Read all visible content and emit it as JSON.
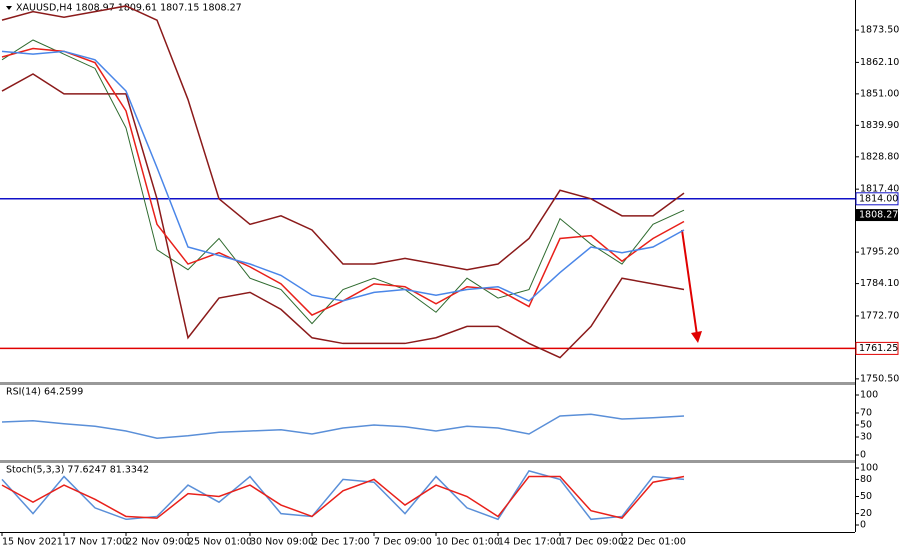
{
  "chart_data": [
    {
      "type": "line",
      "title": "XAUUSD,H4 1808.97 1809.61 1807.15 1808.27",
      "categories": [
        "15 Nov 2021",
        null,
        "17 Nov 17:00",
        null,
        "22 Nov 09:00",
        null,
        "25 Nov 01:00",
        null,
        "30 Nov 09:00",
        null,
        "2 Dec 17:00",
        null,
        "7 Dec 09:00",
        null,
        "10 Dec 01:00",
        null,
        "14 Dec 17:00",
        null,
        "17 Dec 09:00",
        null,
        "22 Dec 01:00",
        null,
        null
      ],
      "series": [
        {
          "color": "#2f6b2f",
          "values": [
            1863,
            1870,
            1865,
            1860,
            1839,
            1796,
            1789,
            1800,
            1786,
            1782,
            1770,
            1782,
            1786,
            1782,
            1774,
            1786,
            1779,
            1782,
            1807,
            1798,
            1791,
            1805,
            1810
          ]
        },
        {
          "color": "#8b1a1a",
          "values": [
            1877,
            1880,
            1878,
            1880,
            1882,
            1877,
            1849,
            1814,
            1805,
            1808,
            1803,
            1791,
            1791,
            1793,
            1791,
            1789,
            1791,
            1800,
            1817,
            1814,
            1808,
            1808,
            1816
          ]
        },
        {
          "color": "#8b1a1a",
          "values": [
            1852,
            1858,
            1851,
            1851,
            1851,
            1814,
            1765,
            1779,
            1781,
            1775,
            1765,
            1763,
            1763,
            1763,
            1765,
            1769,
            1769,
            1763,
            1758,
            1769,
            1786,
            1784,
            1782
          ]
        },
        {
          "color": "#e8201a",
          "values": [
            1864,
            1867,
            1866,
            1862,
            1845,
            1805,
            1791,
            1795,
            1790,
            1784,
            1773,
            1778,
            1784,
            1783,
            1777,
            1783,
            1782,
            1776,
            1800,
            1801,
            1792,
            1800,
            1806
          ]
        },
        {
          "color": "#4a86e8",
          "values": [
            1866,
            1865,
            1866,
            1863,
            1852,
            1825,
            1797,
            1794,
            1791,
            1787,
            1780,
            1778,
            1781,
            1782,
            1780,
            1782,
            1783,
            1778,
            1788,
            1797,
            1795,
            1797,
            1803
          ]
        }
      ],
      "ylim": [
        1749.4,
        1884.1
      ],
      "yticks": [
        {
          "value": 1873.5,
          "label": "1873.50"
        },
        {
          "value": 1862.1,
          "label": "1862.10"
        },
        {
          "value": 1851,
          "label": "1851.00"
        },
        {
          "value": 1839.9,
          "label": "1839.90"
        },
        {
          "value": 1828.8,
          "label": "1828.80"
        },
        {
          "value": 1817.4,
          "label": "1817.40"
        },
        {
          "value": 1795.2,
          "label": "1795.20"
        },
        {
          "value": 1784.1,
          "label": "1784.10"
        },
        {
          "value": 1772.7,
          "label": "1772.70"
        },
        {
          "value": 1750.5,
          "label": "1750.50"
        }
      ],
      "hlines": [
        {
          "value": 1814,
          "label": "1814.00",
          "color": "#1010c8"
        },
        {
          "value": 1761.25,
          "label": "1761.25",
          "color": "#e00000"
        }
      ],
      "current_price": {
        "value": 1808.27,
        "label": "1808.27"
      },
      "grid": false
    },
    {
      "type": "line",
      "title": "RSI(14) 64.2599",
      "series": [
        {
          "color": "#5a8fd8",
          "values": [
            55,
            57,
            52,
            48,
            40,
            28,
            32,
            38,
            40,
            42,
            35,
            45,
            50,
            47,
            40,
            48,
            45,
            35,
            65,
            68,
            60,
            62,
            65
          ]
        }
      ],
      "ylim": [
        0,
        100
      ],
      "yticks": [
        0,
        30,
        50,
        70,
        100
      ],
      "grid": false
    },
    {
      "type": "line",
      "title": "Stoch(5,3,3) 77.6247 81.3342",
      "series": [
        {
          "color": "#5a8fd8",
          "values": [
            80,
            20,
            85,
            30,
            10,
            15,
            70,
            40,
            85,
            20,
            15,
            80,
            75,
            20,
            85,
            30,
            10,
            95,
            80,
            10,
            15,
            85,
            80
          ]
        },
        {
          "color": "#e8201a",
          "values": [
            70,
            40,
            70,
            45,
            15,
            12,
            55,
            50,
            70,
            35,
            15,
            60,
            80,
            35,
            70,
            50,
            15,
            85,
            85,
            25,
            12,
            75,
            85
          ]
        }
      ],
      "ylim": [
        0,
        100
      ],
      "yticks": [
        0,
        20,
        50,
        80,
        100
      ],
      "grid": false
    }
  ]
}
